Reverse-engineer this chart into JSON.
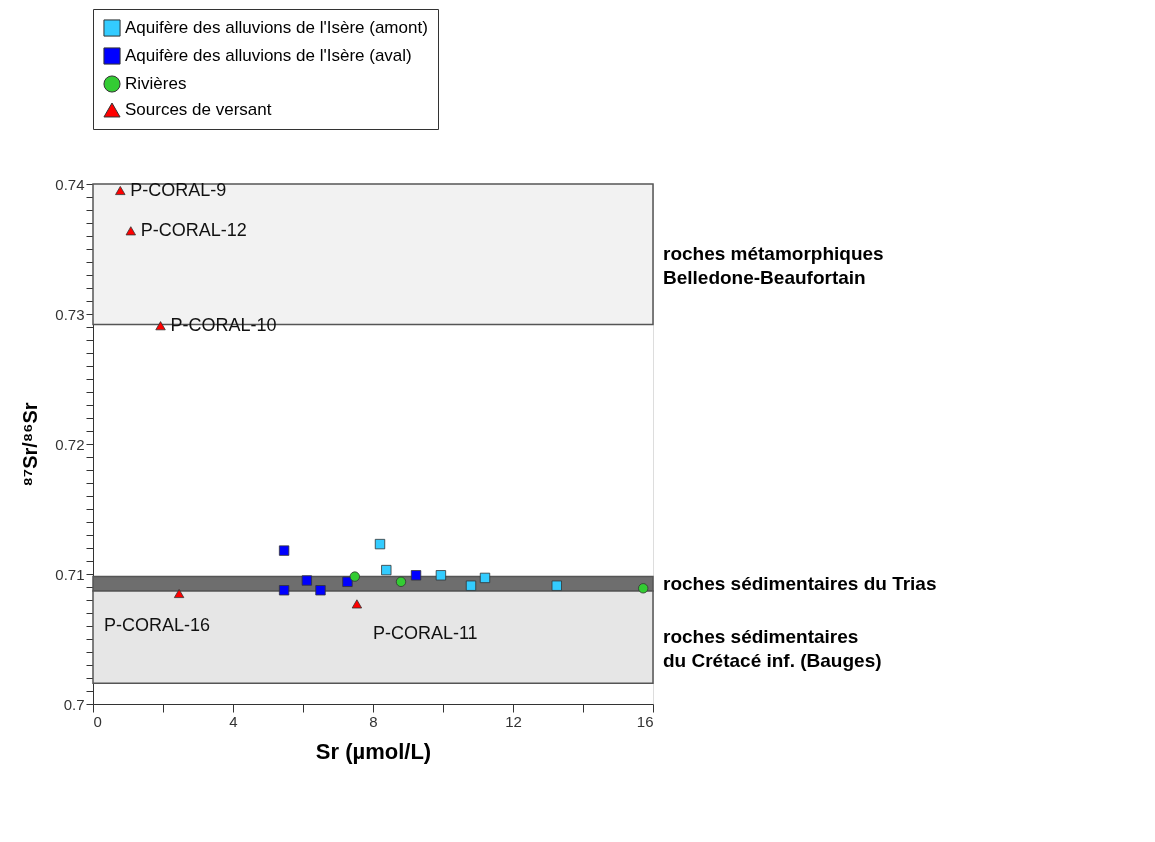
{
  "chart_data": {
    "type": "scatter",
    "xlabel": "Sr (µmol/L)",
    "ylabel": "⁸⁷Sr/⁸⁶Sr",
    "xlim": [
      0,
      16
    ],
    "ylim": [
      0.7,
      0.74
    ],
    "xticks": [
      0,
      {
        "value": 2,
        "label": null
      },
      4,
      {
        "value": 6,
        "label": null
      },
      8,
      {
        "value": 10,
        "label": null
      },
      12,
      {
        "value": 14,
        "label": null
      },
      16
    ],
    "yticks": [
      0.7,
      {
        "value": 0.701,
        "label": null
      },
      {
        "value": 0.702,
        "label": null
      },
      {
        "value": 0.703,
        "label": null
      },
      {
        "value": 0.704,
        "label": null
      },
      {
        "value": 0.705,
        "label": null
      },
      {
        "value": 0.706,
        "label": null
      },
      {
        "value": 0.707,
        "label": null
      },
      {
        "value": 0.708,
        "label": null
      },
      {
        "value": 0.709,
        "label": null
      },
      0.71,
      {
        "value": 0.711,
        "label": null
      },
      {
        "value": 0.712,
        "label": null
      },
      {
        "value": 0.713,
        "label": null
      },
      {
        "value": 0.714,
        "label": null
      },
      {
        "value": 0.715,
        "label": null
      },
      {
        "value": 0.716,
        "label": null
      },
      {
        "value": 0.717,
        "label": null
      },
      {
        "value": 0.718,
        "label": null
      },
      {
        "value": 0.719,
        "label": null
      },
      0.72,
      {
        "value": 0.721,
        "label": null
      },
      {
        "value": 0.722,
        "label": null
      },
      {
        "value": 0.723,
        "label": null
      },
      {
        "value": 0.724,
        "label": null
      },
      {
        "value": 0.725,
        "label": null
      },
      {
        "value": 0.726,
        "label": null
      },
      {
        "value": 0.727,
        "label": null
      },
      {
        "value": 0.728,
        "label": null
      },
      {
        "value": 0.729,
        "label": null
      },
      0.73,
      {
        "value": 0.731,
        "label": null
      },
      {
        "value": 0.732,
        "label": null
      },
      {
        "value": 0.733,
        "label": null
      },
      {
        "value": 0.734,
        "label": null
      },
      {
        "value": 0.735,
        "label": null
      },
      {
        "value": 0.736,
        "label": null
      },
      {
        "value": 0.737,
        "label": null
      },
      {
        "value": 0.738,
        "label": null
      },
      {
        "value": 0.739,
        "label": null
      },
      0.74
    ],
    "grid": false,
    "legend": "top left",
    "bands": [
      {
        "axis": "y",
        "from": 0.7292,
        "to": 0.74,
        "label": "roches métamorphiques\nBelledone-Beaufortain",
        "color": "#f2f2f2"
      },
      {
        "axis": "y",
        "from": 0.7087,
        "to": 0.7098,
        "label": "roches sédimentaires du Trias",
        "color": "#6e6e6e"
      },
      {
        "axis": "y",
        "from": 0.7016,
        "to": 0.7087,
        "label": "roches sédimentaires\ndu Crétacé inf. (Bauges)",
        "color": "#e6e6e6"
      }
    ],
    "series": [
      {
        "name": "Aquifère des alluvions de l'Isère (amont)",
        "color": "#33ccff",
        "marker": "square",
        "x": [
          8.2,
          8.38,
          9.94,
          10.8,
          11.2,
          13.25
        ],
        "values": [
          0.7123,
          0.7103,
          0.7099,
          0.7091,
          0.7097,
          0.7091
        ]
      },
      {
        "name": "Aquifère des alluvions de l'Isère (aval)",
        "color": "#0000ff",
        "marker": "square",
        "x": [
          5.46,
          5.46,
          6.11,
          6.5,
          7.27,
          9.23
        ],
        "values": [
          0.7118,
          0.70875,
          0.7095,
          0.70875,
          0.7094,
          0.7099
        ]
      },
      {
        "name": "Rivières",
        "color": "#33cc33",
        "marker": "circle",
        "x": [
          7.48,
          8.8,
          15.72
        ],
        "values": [
          0.7098,
          0.7094,
          0.7089
        ]
      },
      {
        "name": "Sources de versant",
        "color": "#ff0000",
        "marker": "triangle",
        "x": [
          0.78,
          1.08,
          1.93,
          2.46,
          7.54
        ],
        "values": [
          0.7395,
          0.7364,
          0.7291,
          0.7085,
          0.7077
        ]
      }
    ],
    "annotations": [
      {
        "text": "P-CORAL-9",
        "x": 0.78,
        "y": 0.7395
      },
      {
        "text": "P-CORAL-12",
        "x": 1.08,
        "y": 0.7364
      },
      {
        "text": "P-CORAL-10",
        "x": 1.93,
        "y": 0.7291
      },
      {
        "text": "P-CORAL-16",
        "x": 2.46,
        "y": 0.7085
      },
      {
        "text": "P-CORAL-11",
        "x": 7.54,
        "y": 0.7077
      }
    ]
  }
}
